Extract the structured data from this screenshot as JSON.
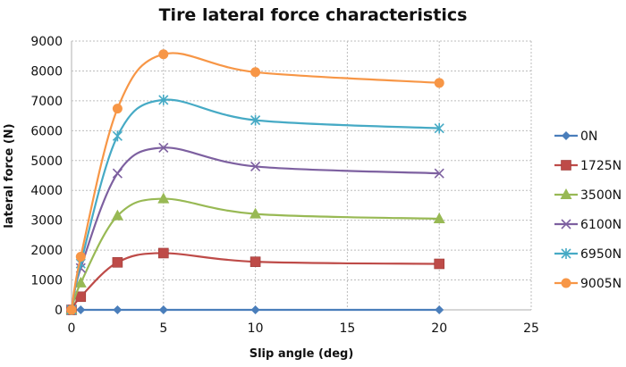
{
  "chart_data": {
    "type": "line",
    "title": "Tire lateral force characteristics",
    "xlabel": "Slip angle (deg)",
    "ylabel": "lateral force (N)",
    "xlim": [
      0,
      25
    ],
    "ylim": [
      0,
      9000
    ],
    "xticks": [
      "0",
      "5",
      "10",
      "15",
      "20",
      "25"
    ],
    "yticks": [
      "0",
      "1000",
      "2000",
      "3000",
      "4000",
      "5000",
      "6000",
      "7000",
      "8000",
      "9000"
    ],
    "grid": true,
    "smooth": true,
    "legend_position": "right",
    "x": [
      0,
      0.5,
      2.5,
      5,
      10,
      20
    ],
    "series": [
      {
        "name": "0N",
        "color": "#4a7ebb",
        "marker": "diamond",
        "values": [
          0,
          0,
          0,
          0,
          0,
          0
        ]
      },
      {
        "name": "1725N",
        "color": "#be4b48",
        "marker": "square",
        "values": [
          0,
          440,
          1590,
          1900,
          1610,
          1540
        ]
      },
      {
        "name": "3500N",
        "color": "#98b954",
        "marker": "triangle",
        "values": [
          0,
          900,
          3150,
          3720,
          3210,
          3050
        ]
      },
      {
        "name": "6100N",
        "color": "#7d60a0",
        "marker": "x",
        "values": [
          0,
          1400,
          4570,
          5430,
          4800,
          4570
        ]
      },
      {
        "name": "6950N",
        "color": "#46aac5",
        "marker": "star",
        "values": [
          0,
          1550,
          5820,
          7030,
          6350,
          6080
        ]
      },
      {
        "name": "9005N",
        "color": "#f79646",
        "marker": "circle",
        "values": [
          0,
          1780,
          6740,
          8560,
          7960,
          7600
        ]
      }
    ]
  }
}
